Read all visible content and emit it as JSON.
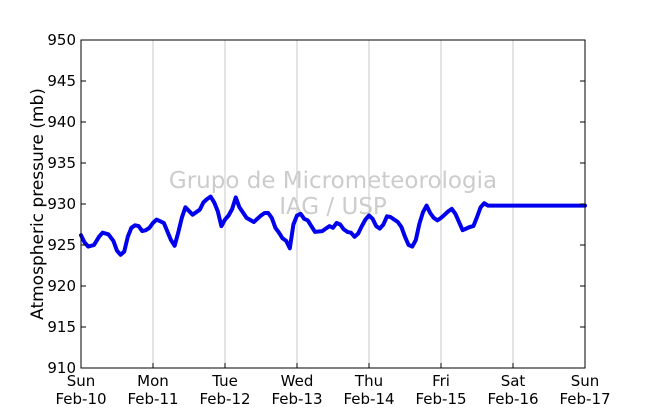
{
  "chart_data": {
    "type": "line",
    "title": "",
    "xlabel": "",
    "ylabel": "Atmospheric pressure (mb)",
    "ylim": [
      910,
      950
    ],
    "yticks": [
      910,
      915,
      920,
      925,
      930,
      935,
      940,
      945,
      950
    ],
    "x_range_days": [
      0,
      7
    ],
    "xticks": [
      {
        "day": 0,
        "line1": "Sun",
        "line2": "Feb-10"
      },
      {
        "day": 1,
        "line1": "Mon",
        "line2": "Feb-11"
      },
      {
        "day": 2,
        "line1": "Tue",
        "line2": "Feb-12"
      },
      {
        "day": 3,
        "line1": "Wed",
        "line2": "Feb-13"
      },
      {
        "day": 4,
        "line1": "Thu",
        "line2": "Feb-14"
      },
      {
        "day": 5,
        "line1": "Fri",
        "line2": "Feb-15"
      },
      {
        "day": 6,
        "line1": "Sat",
        "line2": "Feb-16"
      },
      {
        "day": 7,
        "line1": "Sun",
        "line2": "Feb-17"
      }
    ],
    "grid": "vertical",
    "watermark": [
      "Grupo de Micrometeorologia",
      "IAG / USP"
    ],
    "colors": {
      "series": "#0000ee",
      "grid": "#c8c8c8",
      "watermark": "#cccccc",
      "axes": "#000000"
    },
    "series": [
      {
        "x": [
          0.0,
          0.05,
          0.1,
          0.18,
          0.25,
          0.3,
          0.38,
          0.45,
          0.5,
          0.55,
          0.6,
          0.65,
          0.7,
          0.75,
          0.8,
          0.85,
          0.9,
          0.95,
          1.0,
          1.05,
          1.15,
          1.25,
          1.3,
          1.35,
          1.4,
          1.45,
          1.55,
          1.65,
          1.7,
          1.75,
          1.8,
          1.85,
          1.9,
          1.95,
          2.0,
          2.05,
          2.1,
          2.15,
          2.2,
          2.3,
          2.4,
          2.5,
          2.55,
          2.6,
          2.65,
          2.7,
          2.75,
          2.8,
          2.85,
          2.9,
          2.95,
          3.0,
          3.05,
          3.1,
          3.15,
          3.25,
          3.35,
          3.45,
          3.5,
          3.55,
          3.6,
          3.65,
          3.7,
          3.75,
          3.8,
          3.85,
          3.9,
          3.95,
          4.0,
          4.05,
          4.1,
          4.15,
          4.2,
          4.25,
          4.3,
          4.4,
          4.45,
          4.5,
          4.55,
          4.6,
          4.65,
          4.7,
          4.75,
          4.8,
          4.85,
          4.9,
          4.95,
          5.0,
          5.05,
          5.1,
          5.15,
          5.2,
          5.3,
          5.4,
          5.45,
          5.5,
          5.55,
          5.6,
          5.65,
          5.7,
          5.75,
          5.8,
          5.85,
          5.9,
          5.95,
          6.0,
          6.05,
          6.1,
          6.15,
          6.2,
          6.3,
          6.35,
          6.4,
          6.45,
          6.5,
          6.55,
          6.6,
          6.65,
          6.7,
          6.75,
          6.8,
          6.85,
          6.9,
          6.95,
          7.0
        ],
        "y": [
          926.2,
          925.3,
          924.8,
          925.0,
          926.0,
          926.5,
          926.3,
          925.5,
          924.3,
          923.8,
          924.2,
          926.0,
          927.1,
          927.4,
          927.3,
          926.7,
          926.8,
          927.1,
          927.7,
          928.1,
          927.7,
          925.6,
          924.9,
          926.5,
          928.3,
          929.6,
          928.7,
          929.3,
          930.2,
          930.6,
          930.9,
          930.2,
          929.1,
          927.3,
          928.1,
          928.6,
          929.4,
          930.8,
          929.6,
          928.3,
          927.8,
          928.6,
          928.9,
          928.9,
          928.3,
          927.1,
          926.5,
          925.8,
          925.5,
          924.6,
          927.5,
          928.6,
          928.8,
          928.2,
          928.0,
          926.6,
          926.7,
          927.3,
          927.1,
          927.7,
          927.5,
          926.9,
          926.6,
          926.5,
          926.0,
          926.4,
          927.3,
          928.1,
          928.6,
          928.2,
          927.3,
          927.0,
          927.5,
          928.5,
          928.4,
          927.8,
          927.2,
          926.0,
          925.0,
          924.8,
          925.6,
          927.6,
          929.0,
          929.8,
          928.9,
          928.3,
          928.0,
          928.3,
          928.7,
          929.1,
          929.4,
          928.8,
          926.8,
          927.2,
          927.3,
          928.4,
          929.6,
          930.1,
          929.8,
          929.8,
          929.8,
          929.8,
          929.8,
          929.8,
          929.8,
          929.8,
          929.8,
          929.8,
          929.8,
          929.8,
          929.8,
          929.8,
          929.8,
          929.8,
          929.8,
          929.8,
          929.8,
          929.8,
          929.8,
          929.8,
          929.8,
          929.8,
          929.8,
          929.8,
          929.8
        ]
      }
    ]
  }
}
